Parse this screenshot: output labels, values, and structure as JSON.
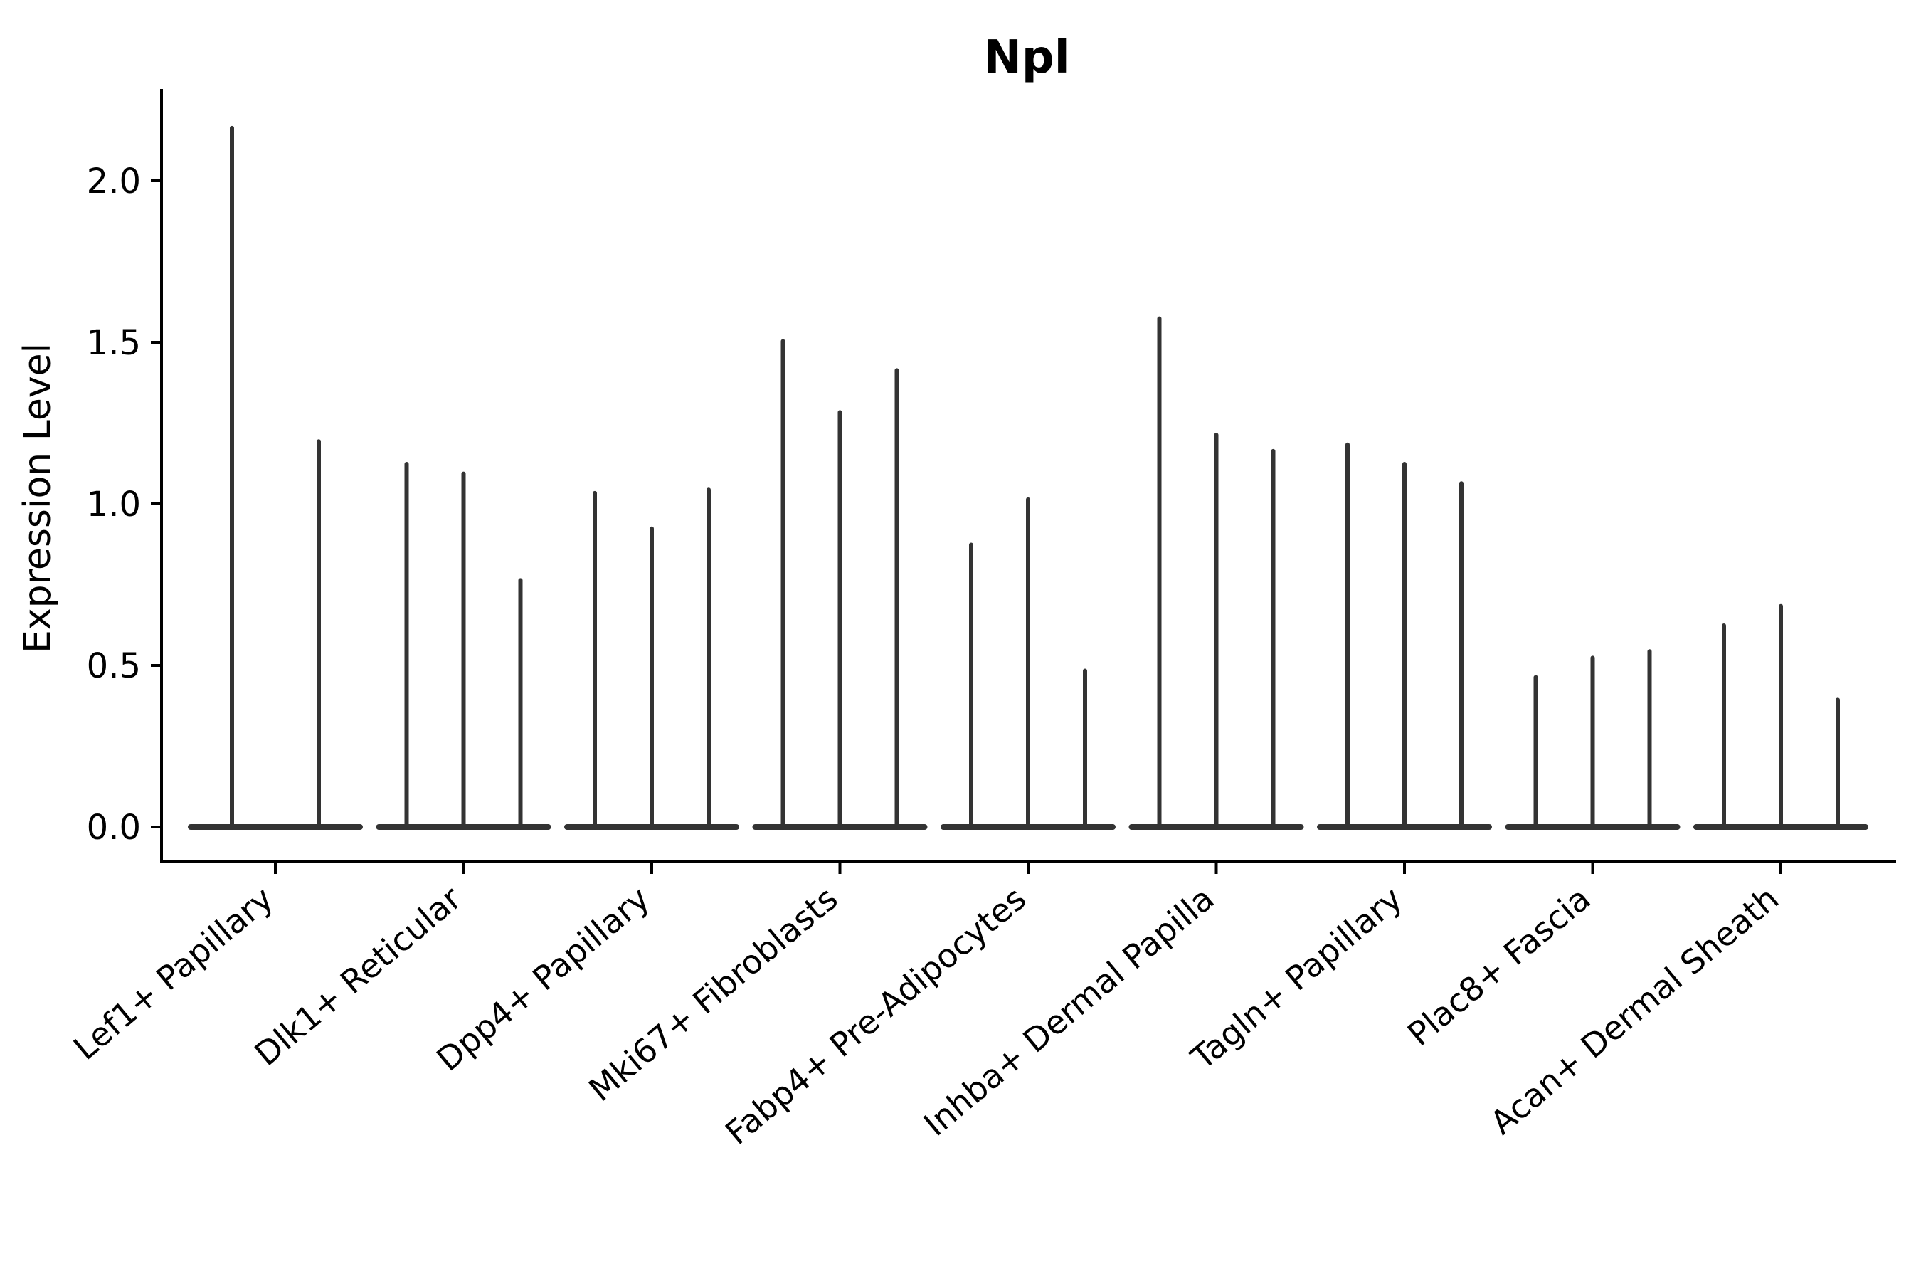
{
  "title": "Npl",
  "ylabel": "Expression Level",
  "colors": {
    "violin": "#333333",
    "axis_and_text": "#000000",
    "background": "#ffffff"
  },
  "chart_data": {
    "type": "violin",
    "title": "Npl",
    "xlabel": "",
    "ylabel": "Expression Level",
    "categories": [
      "Lef1+ Papillary",
      "Dlk1+ Reticular",
      "Dpp4+ Papillary",
      "Mki67+ Fibroblasts",
      "Fabp4+ Pre-Adipocytes",
      "Inhba+ Dermal Papilla",
      "Tagln+ Papillary",
      "Plac8+ Fascia",
      "Acan+ Dermal Sheath"
    ],
    "violin_peak_expression": [
      [
        2.17,
        1.2
      ],
      [
        1.13,
        1.1,
        0.77
      ],
      [
        1.04,
        0.93,
        1.05
      ],
      [
        1.51,
        1.29,
        1.42
      ],
      [
        0.88,
        1.02,
        0.49
      ],
      [
        1.58,
        1.22,
        1.17
      ],
      [
        1.19,
        1.13,
        1.07
      ],
      [
        0.47,
        0.53,
        0.55
      ],
      [
        0.63,
        0.69,
        0.4
      ]
    ],
    "yticks": [
      0.0,
      0.5,
      1.0,
      1.5,
      2.0
    ],
    "ytick_labels": [
      "0.0",
      "0.5",
      "1.0",
      "1.5",
      "2.0"
    ],
    "ylim": [
      -0.11,
      2.29
    ],
    "x_tick_rotation_deg": 40,
    "grid": false,
    "legend": "none",
    "description": "Narrow unfilled violins: nearly all density lies flat at expression 0 (wide thin base per category) with a thin spike rising to each violin's maximum expression value listed in violin_peak_expression."
  }
}
